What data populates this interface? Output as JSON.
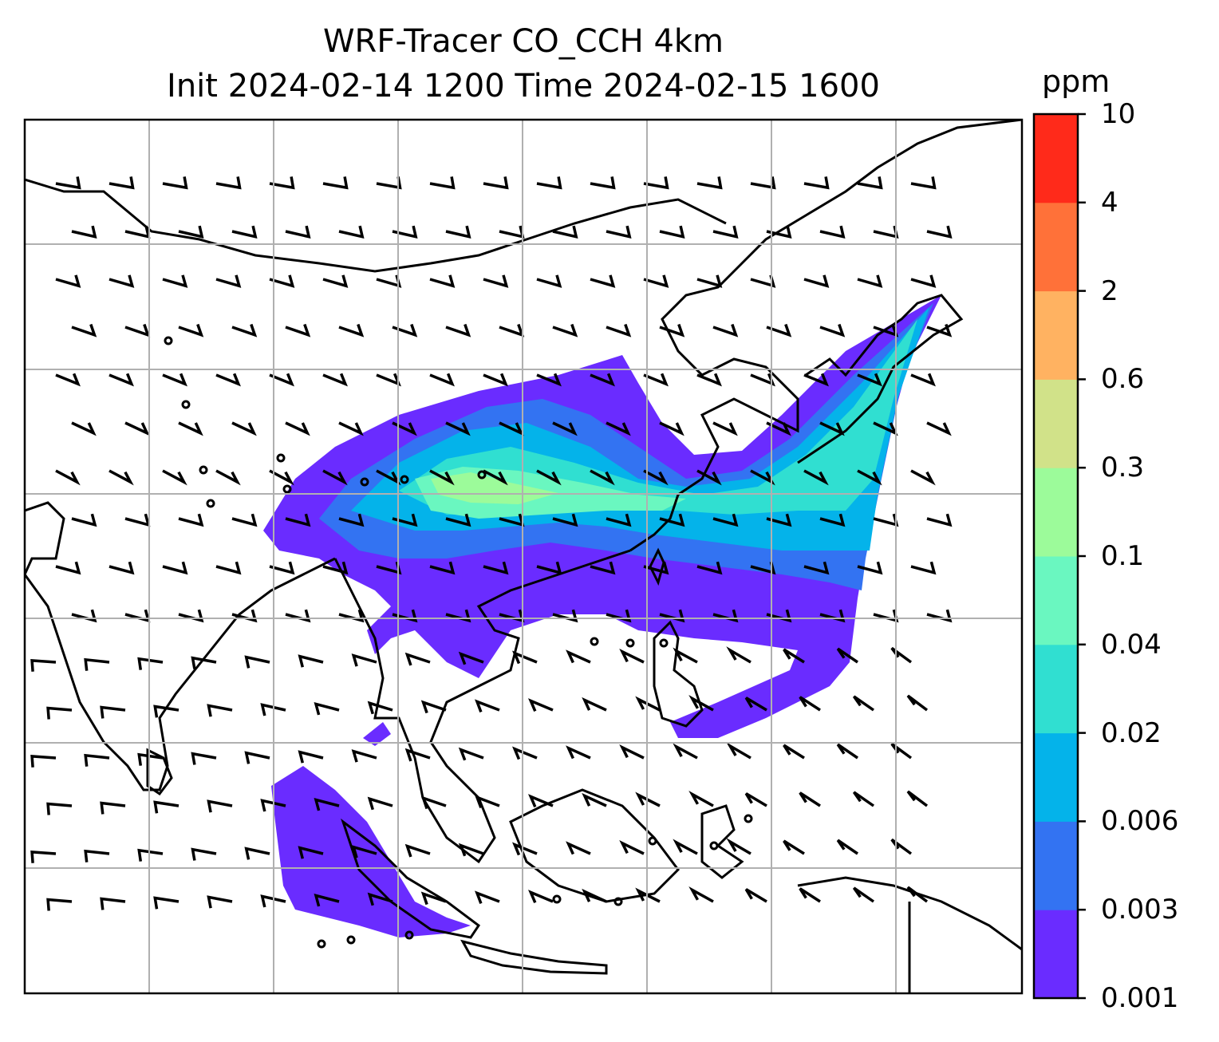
{
  "title": {
    "line1": "WRF-Tracer CO_CCH 4km",
    "line2": "Init 2024-02-14 1200 Time 2024-02-15 1600"
  },
  "colorbar": {
    "unit": "ppm",
    "levels": [
      "0.001",
      "0.003",
      "0.006",
      "0.02",
      "0.04",
      "0.1",
      "0.3",
      "0.6",
      "2",
      "4",
      "10"
    ],
    "colors": [
      "#6a2cff",
      "#3373f2",
      "#04b3ea",
      "#30dfd1",
      "#6af7c0",
      "#9cfb9a",
      "#d1e289",
      "#ffb261",
      "#ff7139",
      "#ff2a1a"
    ]
  },
  "map": {
    "field": "CO_CCH tracer concentration",
    "wind_barbs": true,
    "gridlines": true,
    "coastlines": true
  }
}
